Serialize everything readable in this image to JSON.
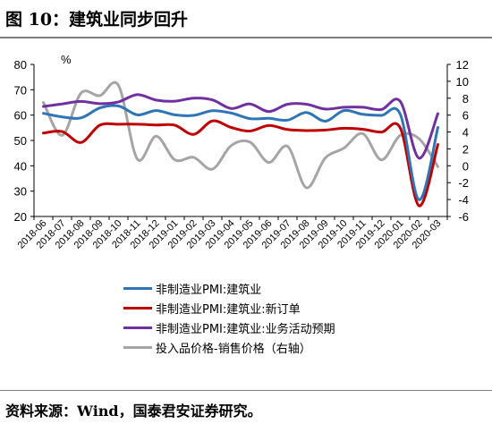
{
  "header": {
    "title": "图 10：建筑业同步回升"
  },
  "footer": {
    "source": "资料来源：Wind，国泰君安证券研究。"
  },
  "chart_data": {
    "type": "line",
    "unit_label": "%",
    "categories": [
      "2018-06",
      "2018-07",
      "2018-08",
      "2018-09",
      "2018-10",
      "2018-11",
      "2018-12",
      "2019-01",
      "2019-02",
      "2019-03",
      "2019-04",
      "2019-05",
      "2019-06",
      "2019-07",
      "2019-08",
      "2019-09",
      "2019-10",
      "2019-11",
      "2019-12",
      "2020-01",
      "2020-02",
      "2020-03"
    ],
    "y_left": {
      "lim": [
        20,
        80
      ],
      "ticks": [
        20,
        30,
        40,
        50,
        60,
        70,
        80
      ]
    },
    "y_right": {
      "lim": [
        -6,
        12
      ],
      "ticks": [
        -6,
        -4,
        -2,
        0,
        2,
        4,
        6,
        8,
        10,
        12
      ]
    },
    "grid": false,
    "legend_position": "bottom",
    "series": [
      {
        "name": "非制造业PMI:建筑业",
        "axis": "left",
        "color": "#2e75b6",
        "values": [
          60.7,
          59.3,
          58.9,
          62.8,
          63.6,
          60.1,
          61.8,
          60.1,
          59.9,
          61.7,
          60.8,
          58.6,
          58.7,
          58.0,
          61.0,
          57.6,
          61.8,
          60.3,
          59.9,
          60.3,
          26.6,
          55.1
        ]
      },
      {
        "name": "非制造业PMI:建筑业:新订单",
        "axis": "left",
        "color": "#c00000",
        "values": [
          52.9,
          53.5,
          49.2,
          56.0,
          56.4,
          56.4,
          56.1,
          56.0,
          52.4,
          57.7,
          55.1,
          53.7,
          55.9,
          54.3,
          53.9,
          54.1,
          54.8,
          54.4,
          53.3,
          54.9,
          24.2,
          48.4
        ]
      },
      {
        "name": "非制造业PMI:建筑业:业务活动预期",
        "axis": "left",
        "color": "#7030a0",
        "values": [
          63.4,
          64.4,
          65.4,
          64.5,
          65.2,
          68.1,
          65.9,
          65.5,
          66.7,
          66.0,
          62.6,
          64.4,
          61.4,
          64.3,
          64.3,
          62.4,
          63.1,
          63.1,
          62.2,
          65.4,
          43.0,
          60.6
        ]
      },
      {
        "name": "投入品价格-销售价格（右轴）",
        "axis": "right",
        "color": "#a5a5a5",
        "values": [
          7.5,
          3.6,
          8.6,
          8.3,
          9.5,
          0.8,
          3.5,
          0.7,
          1.0,
          -0.4,
          2.4,
          2.8,
          0.4,
          2.3,
          -2.6,
          0.9,
          2.1,
          3.8,
          0.7,
          3.6,
          3.2,
          -0.1
        ]
      }
    ]
  }
}
